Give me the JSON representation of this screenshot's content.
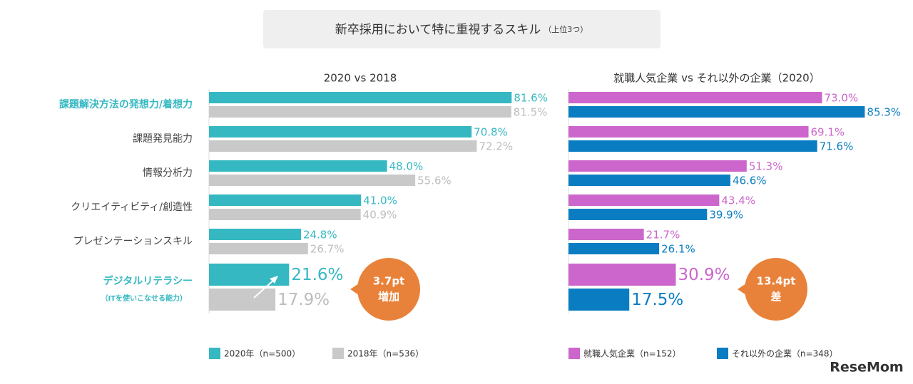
{
  "title": "新卒採用において特に重視するスキル",
  "subtitle": "（上位3つ）",
  "watermark": "ReseMom",
  "chart_data": [
    {
      "type": "hbar",
      "title": "2020 vs 2018",
      "categories": [
        "課題解決方法の発想力/着想力",
        "課題発見能力",
        "情報分析力",
        "クリエイティビティ/創造性",
        "プレゼンテーションスキル",
        "デジタルリテラシー"
      ],
      "category_note": "（ITを使いこなせる能力）",
      "highlight_categories": [
        0,
        5
      ],
      "highlight_color": "#35b8c2",
      "annotation": [
        "3.7pt",
        "増加"
      ],
      "series": [
        {
          "name": "2020年（n=500）",
          "color": "#35b8c2",
          "values": [
            81.6,
            70.8,
            48.0,
            41.0,
            24.8,
            21.6
          ],
          "value_labels": [
            "81.6%",
            "70.8%",
            "48.0%",
            "41.0%",
            "24.8%",
            "21.6%"
          ]
        },
        {
          "name": "2018年（n=536）",
          "color": "#c9c9c9",
          "values": [
            81.5,
            72.2,
            55.6,
            40.9,
            26.7,
            17.9
          ],
          "value_labels": [
            "81.5%",
            "72.2%",
            "55.6%",
            "40.9%",
            "26.7%",
            "17.9%"
          ]
        }
      ]
    },
    {
      "type": "hbar",
      "title": "就職人気企業 vs それ以外の企業（2020）",
      "annotation": [
        "13.4pt",
        "差"
      ],
      "series": [
        {
          "name": "就職人気企業（n=152）",
          "color": "#cc66cc",
          "values": [
            73.0,
            69.1,
            51.3,
            43.4,
            21.7,
            30.9
          ],
          "value_labels": [
            "73.0%",
            "69.1%",
            "51.3%",
            "43.4%",
            "21.7%",
            "30.9%"
          ]
        },
        {
          "name": "それ以外の企業（n=348）",
          "color": "#0a7dc2",
          "values": [
            85.3,
            71.6,
            46.6,
            39.9,
            26.1,
            17.5
          ],
          "value_labels": [
            "85.3%",
            "71.6%",
            "46.6%",
            "39.9%",
            "26.1%",
            "17.5%"
          ]
        }
      ]
    }
  ]
}
